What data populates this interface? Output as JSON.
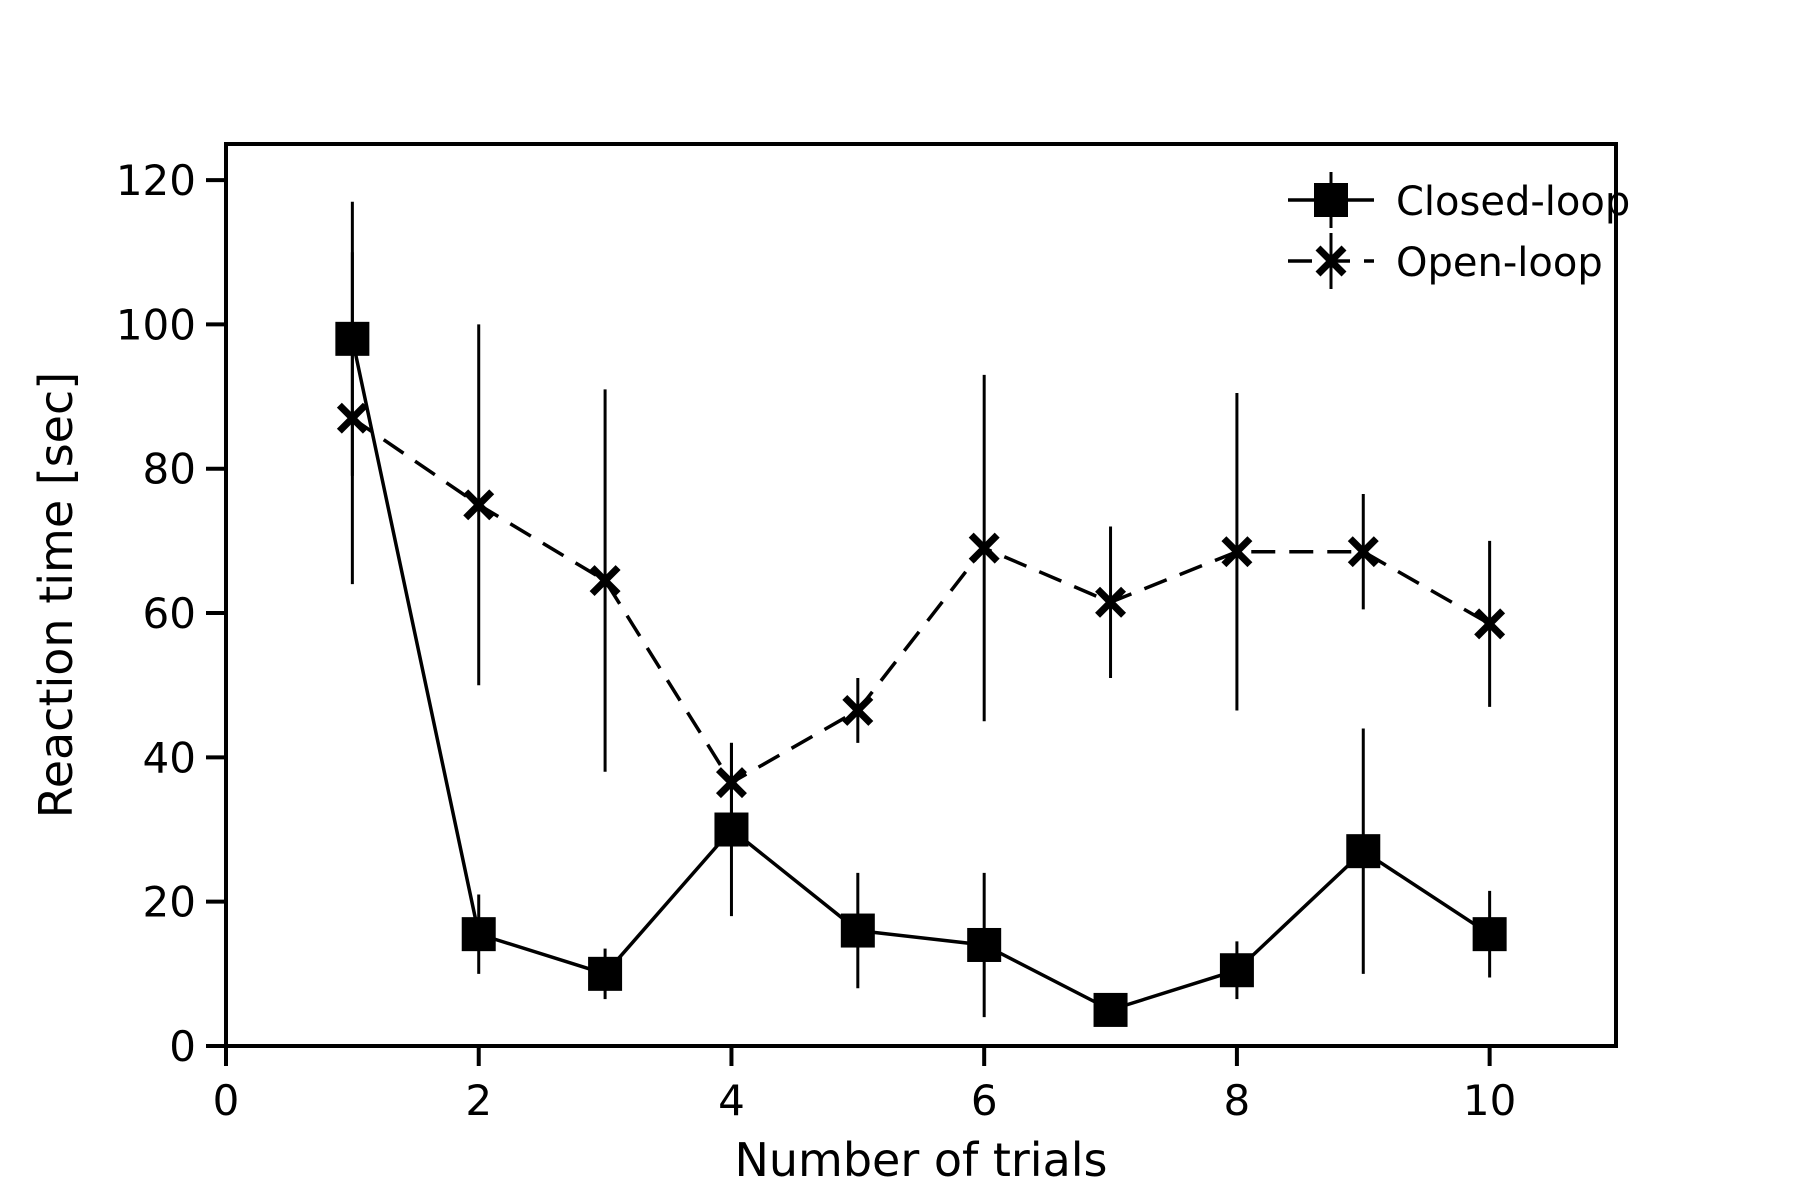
{
  "figure": {
    "background": "#ffffff",
    "ink_color": "#000000"
  },
  "chart_data": {
    "type": "line",
    "subtype": "errorbar",
    "title": "",
    "xlabel": "Number of trials",
    "ylabel": "Reaction time [sec]",
    "xlim": [
      0,
      11
    ],
    "ylim": [
      0,
      125
    ],
    "x_ticks": [
      0,
      2,
      4,
      6,
      8,
      10
    ],
    "y_ticks": [
      0,
      20,
      40,
      60,
      80,
      100,
      120
    ],
    "grid": false,
    "legend_position": "top-right",
    "legend_frame": false,
    "x": [
      1,
      2,
      3,
      4,
      5,
      6,
      7,
      8,
      9,
      10
    ],
    "series": [
      {
        "name": "Closed-loop",
        "line_style": "solid",
        "marker": "square",
        "color": "#000000",
        "values": [
          98,
          15.5,
          10,
          30,
          16,
          14,
          5,
          10.5,
          27,
          15.5
        ],
        "yerr": [
          19,
          5.5,
          3.5,
          12,
          8,
          10,
          2,
          4,
          17,
          6
        ]
      },
      {
        "name": "Open-loop",
        "line_style": "dashed",
        "marker": "x",
        "color": "#000000",
        "values": [
          87,
          75,
          64.5,
          36.5,
          46.5,
          69,
          61.5,
          68.5,
          68.5,
          58.5
        ],
        "yerr": [
          23,
          25,
          26.5,
          5.5,
          4.5,
          24,
          10.5,
          22,
          8,
          11.5
        ]
      }
    ]
  }
}
